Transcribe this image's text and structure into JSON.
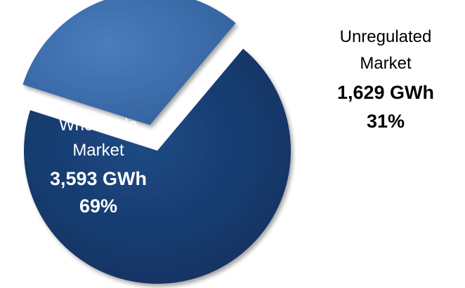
{
  "chart_data": {
    "type": "pie",
    "exploded": true,
    "slices": [
      {
        "label_lines": [
          "Wholesale",
          "Market"
        ],
        "value": 3593,
        "value_text": "3,593 GWh",
        "percent_text": "69%",
        "color": "#173a6b",
        "label_color": "#ffffff"
      },
      {
        "label_lines": [
          "Unregulated",
          "Market"
        ],
        "value": 1629,
        "value_text": "1,629 GWh",
        "percent_text": "31%",
        "color": "#3b6aa6",
        "label_color": "#000000"
      }
    ]
  }
}
